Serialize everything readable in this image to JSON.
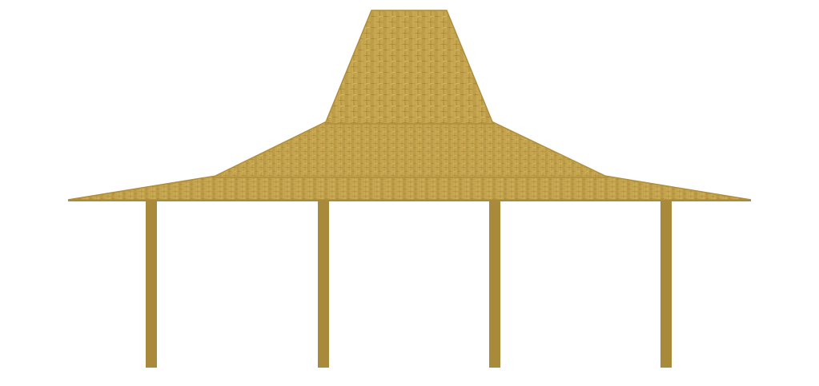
{
  "scene": {
    "subject": "pavilion",
    "icon": "joglo-pavilion-icon",
    "colors": {
      "background": "#ffffff",
      "roof_base": "#c2a04a",
      "roof_light": "#d9bb66",
      "roof_dark": "#9c7e2c",
      "roof_outline": "#b08d3a",
      "pillar": "#a88a3a"
    },
    "pillar_count": 4,
    "roof_tiers": 3
  }
}
